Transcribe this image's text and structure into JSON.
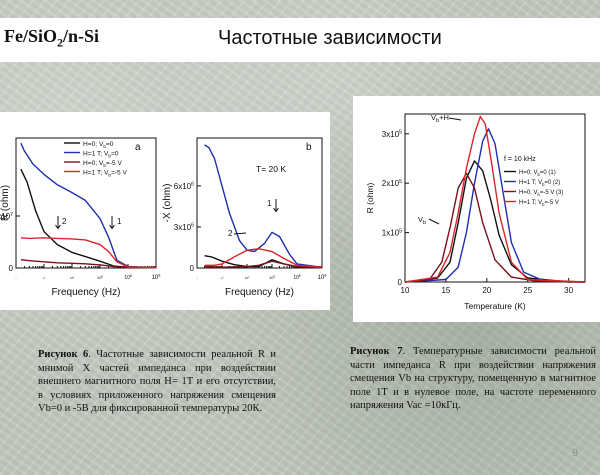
{
  "slide": {
    "left_title_main": "Fe/SiO",
    "left_title_sub": "2",
    "left_title_tail": "/n-Si",
    "title": "Частотные зависимости",
    "page_number": "9"
  },
  "captions": {
    "fig6_label": "Рисунок 6",
    "fig6_text": ". Частотные зависимости реальной R и мнимой X частей импеданса при воздействии внешнего магнитного поля H= 1T и его отсутствии, в условиях приложенного напряжения смещения Vb=0 и -5В для фиксированной температуры 20К.",
    "fig7_label": "Рисунок 7",
    "fig7_text": ". Температурные зависимости реальной части импеданса R при воздействии напряжения смещения Vb на структуру, помещенную в магнитное поле 1T и в нулевое поле, на частоте переменного напряжения Vac =10кГц."
  },
  "colors": {
    "black": "#111111",
    "blue": "#1f2fb0",
    "dark_red": "#7a1018",
    "red": "#d8262a"
  },
  "chart_data": [
    {
      "id": "fig6a",
      "type": "line",
      "panel_letter": "a",
      "xlabel": "Frequency (Hz)",
      "ylabel": "R (ohm)",
      "x_scale": "log",
      "xlim": [
        10,
        1000000
      ],
      "x_ticks": [
        "10",
        "10",
        "10",
        "10",
        "10",
        "10"
      ],
      "x_tick_exp": [
        "1",
        "2",
        "3",
        "4",
        "5",
        "6"
      ],
      "y_ticks": [
        "0",
        "1x10"
      ],
      "y_tick_exp": [
        "",
        "7"
      ],
      "ylim": [
        0,
        25000000
      ],
      "annotations": [
        "2",
        "1"
      ],
      "legend": [
        {
          "pre": "H=0; V",
          "sub": "b",
          "post": "=0"
        },
        {
          "pre": "H=1 T; V",
          "sub": "b",
          "post": "=0"
        },
        {
          "pre": "H=0; V",
          "sub": "b",
          "post": "=-5 V"
        },
        {
          "pre": "H=1 T; V",
          "sub": "b",
          "post": "=-5 V"
        }
      ],
      "series": [
        {
          "color": "#111111",
          "x": [
            15,
            25,
            50,
            100,
            300,
            1000,
            3000,
            10000,
            30000,
            100000,
            1000000
          ],
          "y": [
            19000000,
            16500000,
            11000000,
            7000000,
            4500000,
            3000000,
            2200000,
            1300000,
            400000,
            100000,
            50000
          ]
        },
        {
          "color": "#1f2fb0",
          "x": [
            15,
            20,
            40,
            100,
            300,
            1000,
            3000,
            10000,
            20000,
            40000,
            100000,
            1000000
          ],
          "y": [
            24000000,
            22500000,
            20000000,
            18000000,
            16000000,
            14500000,
            13000000,
            9500000,
            6000000,
            1500000,
            300000,
            50000
          ]
        },
        {
          "color": "#7a1018",
          "x": [
            15,
            30,
            100,
            300,
            1000,
            3000,
            10000,
            30000,
            100000,
            1000000
          ],
          "y": [
            1600000,
            1400000,
            1200000,
            1000000,
            900000,
            800000,
            600000,
            300000,
            100000,
            50000
          ]
        },
        {
          "color": "#d8262a",
          "x": [
            15,
            30,
            100,
            300,
            1000,
            3000,
            10000,
            20000,
            40000,
            100000,
            1000000
          ],
          "y": [
            5800000,
            5700000,
            5800000,
            5700000,
            5600000,
            5400000,
            4500000,
            3200000,
            1200000,
            200000,
            50000
          ]
        }
      ]
    },
    {
      "id": "fig6b",
      "type": "line",
      "panel_letter": "b",
      "xlabel": "Frequency (Hz)",
      "ylabel": "-X (ohm)",
      "x_scale": "log",
      "xlim": [
        10,
        1000000
      ],
      "x_ticks": [
        "10",
        "10",
        "10",
        "10",
        "10",
        "10"
      ],
      "x_tick_exp": [
        "1",
        "2",
        "3",
        "4",
        "5",
        "6"
      ],
      "y_ticks": [
        "0",
        "3x10",
        "6x10"
      ],
      "y_tick_exp": [
        "",
        "6",
        "6"
      ],
      "ylim": [
        0,
        9500000
      ],
      "annotations": [
        "T= 20 K",
        "1",
        "2"
      ],
      "series": [
        {
          "color": "#111111",
          "x": [
            20,
            40,
            100,
            300,
            1000,
            3000,
            10000,
            30000,
            100000,
            1000000
          ],
          "y": [
            900000,
            800000,
            500000,
            250000,
            100000,
            100000,
            600000,
            300000,
            80000,
            20000
          ]
        },
        {
          "color": "#1f2fb0",
          "x": [
            20,
            30,
            50,
            100,
            200,
            500,
            1000,
            2000,
            5000,
            10000,
            20000,
            50000,
            100000,
            1000000
          ],
          "y": [
            9000000,
            8800000,
            8000000,
            6000000,
            4000000,
            2000000,
            1300000,
            1200000,
            1800000,
            2600000,
            2300000,
            1000000,
            300000,
            50000
          ]
        },
        {
          "color": "#7a1018",
          "x": [
            20,
            100,
            1000,
            3000,
            10000,
            30000,
            100000,
            1000000
          ],
          "y": [
            100000,
            60000,
            100000,
            200000,
            500000,
            300000,
            100000,
            20000
          ]
        },
        {
          "color": "#d8262a",
          "x": [
            20,
            50,
            100,
            300,
            1000,
            3000,
            10000,
            30000,
            100000,
            1000000
          ],
          "y": [
            200000,
            200000,
            300000,
            800000,
            1300000,
            1400000,
            1200000,
            700000,
            200000,
            50000
          ]
        }
      ]
    },
    {
      "id": "fig7",
      "type": "line",
      "xlabel": "Temperature (K)",
      "ylabel": "R (ohm)",
      "xlim": [
        10,
        32
      ],
      "x_ticks": [
        "10",
        "15",
        "20",
        "25",
        "30"
      ],
      "y_ticks": [
        "0",
        "1x10",
        "2x10",
        "3x10"
      ],
      "y_tick_exp": [
        "",
        "5",
        "5",
        "5"
      ],
      "ylim": [
        0,
        340000
      ],
      "annotations": [
        "f = 10 kHz",
        "V",
        "b",
        "+H",
        "V",
        "b"
      ],
      "legend": [
        {
          "pre": "H=0; V",
          "sub": "b",
          "post": "=0 (1)"
        },
        {
          "pre": "H=1 T; V",
          "sub": "b",
          "post": "=0 (2)"
        },
        {
          "pre": "H=0; V",
          "sub": "b",
          "post": "=-5 V (3)"
        },
        {
          "pre": "H=1 T; V",
          "sub": "b",
          "post": "=-5 V"
        }
      ],
      "series": [
        {
          "color": "#111111",
          "x": [
            10,
            14,
            15.5,
            16.5,
            17.5,
            18.5,
            19.5,
            20.5,
            21.5,
            23,
            25,
            30,
            32
          ],
          "y": [
            0,
            8000,
            40000,
            120000,
            210000,
            245000,
            225000,
            165000,
            95000,
            35000,
            8000,
            0,
            0
          ]
        },
        {
          "color": "#1f2fb0",
          "x": [
            10,
            15,
            16.5,
            17.5,
            18.5,
            19.5,
            20.2,
            21,
            22,
            23,
            24.5,
            27,
            32
          ],
          "y": [
            0,
            5000,
            30000,
            100000,
            200000,
            285000,
            310000,
            280000,
            180000,
            80000,
            20000,
            2000,
            0
          ]
        },
        {
          "color": "#7a1018",
          "x": [
            10,
            13,
            14.5,
            15.5,
            16.5,
            17.5,
            18.5,
            19.5,
            21,
            23,
            26,
            32
          ],
          "y": [
            0,
            5000,
            40000,
            110000,
            190000,
            220000,
            190000,
            120000,
            45000,
            10000,
            2000,
            0
          ]
        },
        {
          "color": "#d8262a",
          "x": [
            10,
            14,
            15.5,
            16.5,
            17.5,
            18.5,
            19.2,
            19.8,
            20.5,
            21.5,
            23,
            25,
            32
          ],
          "y": [
            0,
            10000,
            60000,
            140000,
            230000,
            300000,
            335000,
            320000,
            250000,
            140000,
            40000,
            5000,
            0
          ]
        }
      ]
    }
  ]
}
